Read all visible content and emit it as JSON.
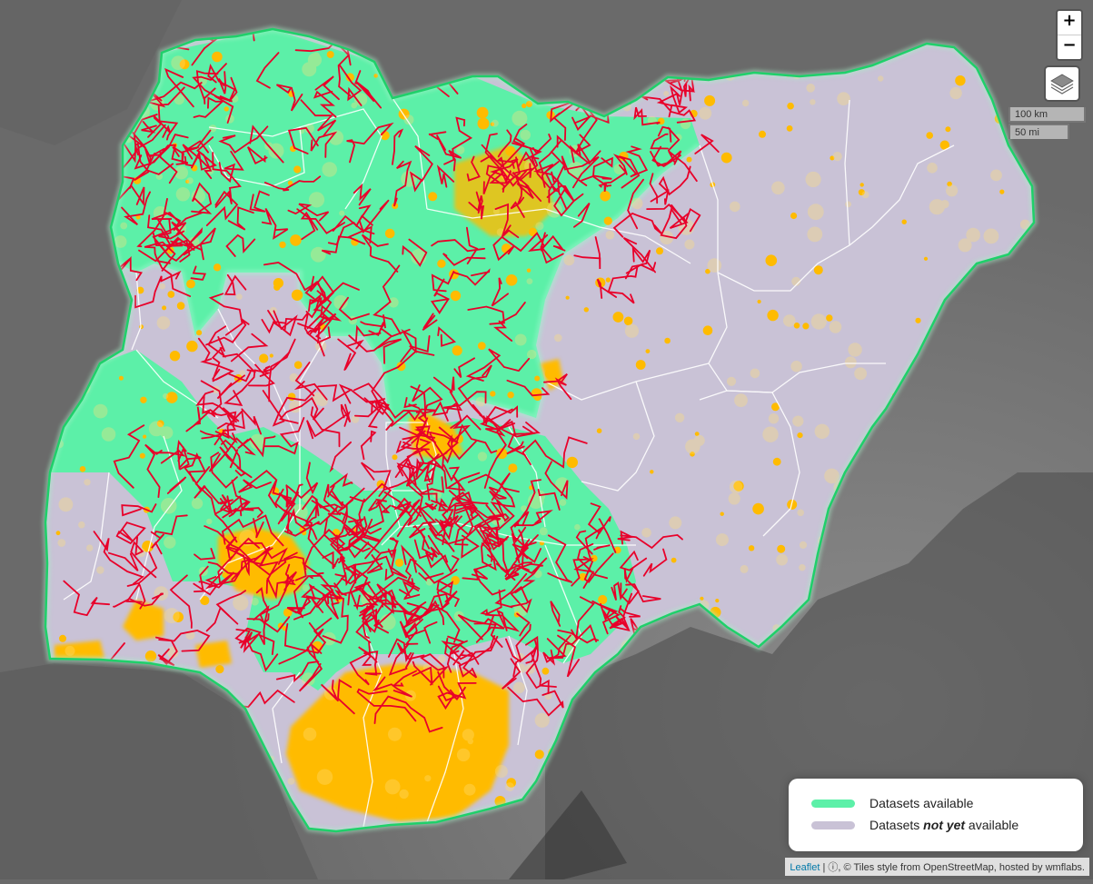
{
  "map": {
    "colors": {
      "datasets_available": "#5cf0a8",
      "datasets_not_yet_available": "#c9c2d6",
      "border": "#1fd06a",
      "roads": "#e8002a",
      "settlements": "#ffbb00",
      "terrain": "#6a6a6a"
    }
  },
  "controls": {
    "zoom_in": "+",
    "zoom_out": "−",
    "layers_icon": "layers-icon"
  },
  "scale": {
    "km": "100 km",
    "mi": "50 mi"
  },
  "legend": {
    "item1": "Datasets available",
    "item2_prefix": "Datasets ",
    "item2_emphasis": "not yet",
    "item2_suffix": " available"
  },
  "attribution": {
    "leaflet": "Leaflet",
    "sep": " | ",
    "rest": "ⓘ, © Tiles style from OpenStreetMap, hosted by wmflabs."
  }
}
